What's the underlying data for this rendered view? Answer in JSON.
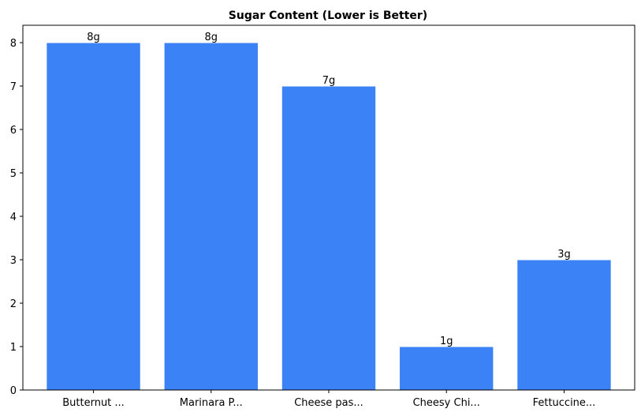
{
  "chart_data": {
    "type": "bar",
    "title": "Sugar Content (Lower is Better)",
    "xlabel": "",
    "ylabel": "",
    "categories": [
      "Butternut ...",
      "Marinara P...",
      "Cheese pas...",
      "Cheesy Chi...",
      "Fettuccine..."
    ],
    "values": [
      8,
      8,
      7,
      1,
      3
    ],
    "data_labels": [
      "8g",
      "8g",
      "7g",
      "1g",
      "3g"
    ],
    "ylim": [
      0,
      8.4
    ],
    "yticks": [
      0,
      1,
      2,
      3,
      4,
      5,
      6,
      7,
      8
    ],
    "grid": false,
    "bar_color": "#3b82f6"
  }
}
